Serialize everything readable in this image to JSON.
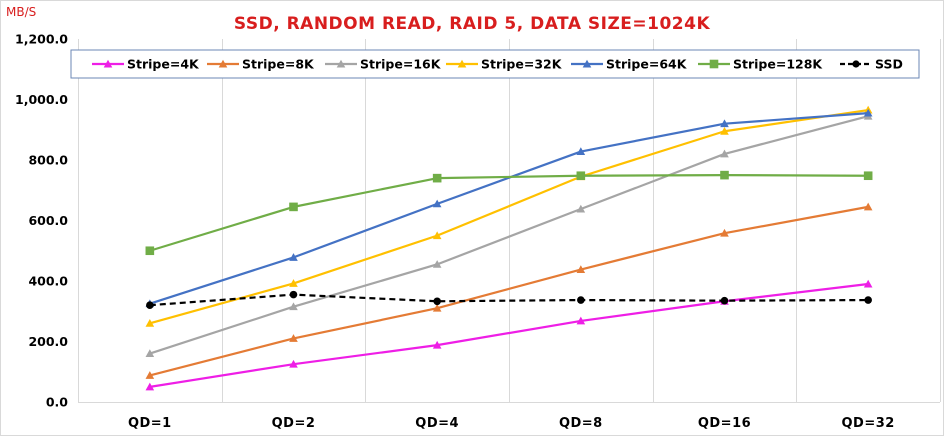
{
  "chart_data": {
    "type": "line",
    "title": "SSD, RANDOM READ, RAID 5, DATA SIZE=1024K",
    "ylabel": "MB/S",
    "xlabel": "",
    "categories": [
      "QD=1",
      "QD=2",
      "QD=4",
      "QD=8",
      "QD=16",
      "QD=32"
    ],
    "ylim": [
      0,
      1200
    ],
    "yticks": [
      0,
      200,
      400,
      600,
      800,
      1000,
      1200
    ],
    "ytick_labels": [
      "0.0",
      "200.0",
      "400.0",
      "600.0",
      "800.0",
      "1,000.0",
      "1,200.0"
    ],
    "grid": "vertical",
    "legend_position": "top",
    "series": [
      {
        "name": "Stripe=4K",
        "color": "#ee1ee6",
        "marker": "triangle",
        "dashed": false,
        "values": [
          50,
          125,
          188,
          268,
          333,
          390
        ]
      },
      {
        "name": "Stripe=8K",
        "color": "#e47b35",
        "marker": "triangle",
        "dashed": false,
        "values": [
          88,
          210,
          310,
          438,
          558,
          645
        ]
      },
      {
        "name": "Stripe=16K",
        "color": "#a5a5a5",
        "marker": "triangle",
        "dashed": false,
        "values": [
          160,
          315,
          455,
          638,
          820,
          945
        ]
      },
      {
        "name": "Stripe=32K",
        "color": "#ffc000",
        "marker": "triangle",
        "dashed": false,
        "values": [
          260,
          392,
          550,
          745,
          895,
          965
        ]
      },
      {
        "name": "Stripe=64K",
        "color": "#4472c4",
        "marker": "triangle",
        "dashed": false,
        "values": [
          325,
          478,
          655,
          828,
          920,
          955
        ]
      },
      {
        "name": "Stripe=128K",
        "color": "#70ad47",
        "marker": "square",
        "dashed": false,
        "values": [
          500,
          645,
          740,
          748,
          750,
          748
        ]
      },
      {
        "name": "SSD",
        "color": "#000000",
        "marker": "circle",
        "dashed": true,
        "values": [
          320,
          355,
          333,
          337,
          335,
          337
        ]
      }
    ]
  }
}
